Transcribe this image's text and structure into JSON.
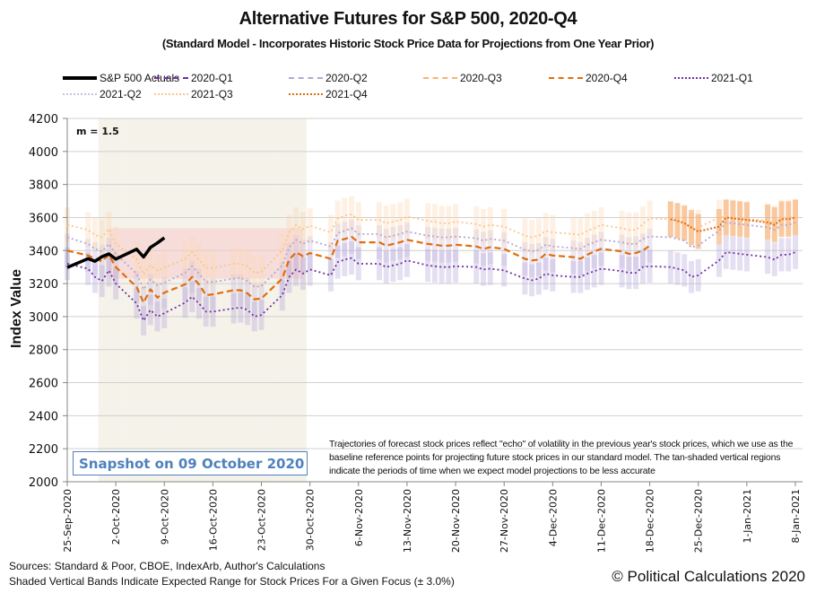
{
  "chart_data": {
    "type": "line",
    "title": "Alternative Futures for S&P 500, 2020-Q4",
    "subtitle": "(Standard Model - Incorporates Historic Stock Price Data for Projections from One Year Prior)",
    "xlabel": "",
    "ylabel": "Index Value",
    "ylim": [
      2000,
      4200
    ],
    "yticks": [
      2000,
      2200,
      2400,
      2600,
      2800,
      3000,
      3200,
      3400,
      3600,
      3800,
      4000,
      4200
    ],
    "x_start": "2020-09-25",
    "x_end": "2021-01-08",
    "xticks": [
      {
        "label": "25-Sep-2020",
        "day": 0
      },
      {
        "label": "2-Oct-2020",
        "day": 7
      },
      {
        "label": "9-Oct-2020",
        "day": 14
      },
      {
        "label": "16-Oct-2020",
        "day": 21
      },
      {
        "label": "23-Oct-2020",
        "day": 28
      },
      {
        "label": "30-Oct-2020",
        "day": 35
      },
      {
        "label": "6-Nov-2020",
        "day": 42
      },
      {
        "label": "13-Nov-2020",
        "day": 49
      },
      {
        "label": "20-Nov-2020",
        "day": 56
      },
      {
        "label": "27-Nov-2020",
        "day": 63
      },
      {
        "label": "4-Dec-2020",
        "day": 70
      },
      {
        "label": "11-Dec-2020",
        "day": 77
      },
      {
        "label": "18-Dec-2020",
        "day": 84
      },
      {
        "label": "25-Dec-2020",
        "day": 91
      },
      {
        "label": "1-Jan-2021",
        "day": 98
      },
      {
        "label": "8-Jan-2021",
        "day": 105
      }
    ],
    "grid": true,
    "legend_position": "top",
    "annotation_m": "m = 1.5",
    "band_pct": 3.0,
    "highlight_zone": {
      "day_start": 6,
      "day_end": 34,
      "y_low": 3230,
      "y_high": 3535
    },
    "tan_regions_days": [
      [
        5,
        8
      ],
      [
        9,
        15
      ],
      [
        16,
        22
      ],
      [
        23,
        29
      ],
      [
        30,
        34
      ]
    ],
    "series": [
      {
        "name": "S&P 500 Actuals",
        "color": "#000000",
        "style": "solid",
        "days": [
          0,
          3,
          4,
          5,
          6,
          7,
          10,
          11,
          12,
          13,
          14
        ],
        "values": [
          3298,
          3351,
          3335,
          3363,
          3380,
          3348,
          3408,
          3361,
          3419,
          3446,
          3477
        ]
      },
      {
        "name": "2020-Q1",
        "color": "#7030a0",
        "style": "dashed",
        "days": [],
        "values": []
      },
      {
        "name": "2020-Q2",
        "color": "#b4a7d6",
        "style": "dashed",
        "days": [],
        "values": []
      },
      {
        "name": "2020-Q3",
        "color": "#f9b26b",
        "style": "dashed",
        "days": [],
        "values": []
      },
      {
        "name": "2020-Q4",
        "color": "#e36c09",
        "style": "dashed",
        "days": [
          0,
          3,
          4,
          5,
          6,
          7,
          10,
          11,
          12,
          13,
          14,
          17,
          18,
          19,
          20,
          21,
          24,
          25,
          26,
          27,
          28,
          31,
          32,
          33,
          34,
          35,
          38,
          39,
          40,
          41,
          42,
          45,
          46,
          47,
          48,
          49,
          52,
          53,
          54,
          55,
          56,
          59,
          60,
          61,
          63,
          66,
          67,
          68,
          69,
          70,
          73,
          74,
          75,
          76,
          77,
          80,
          81,
          82,
          83,
          84
        ],
        "values": [
          3400,
          3370,
          3350,
          3335,
          3375,
          3300,
          3180,
          3085,
          3165,
          3115,
          3145,
          3195,
          3240,
          3195,
          3130,
          3135,
          3160,
          3160,
          3140,
          3105,
          3110,
          3230,
          3345,
          3390,
          3365,
          3385,
          3350,
          3460,
          3470,
          3483,
          3450,
          3450,
          3430,
          3440,
          3450,
          3465,
          3440,
          3435,
          3430,
          3430,
          3435,
          3425,
          3410,
          3420,
          3410,
          3350,
          3340,
          3345,
          3380,
          3370,
          3360,
          3350,
          3375,
          3395,
          3410,
          3395,
          3380,
          3385,
          3400,
          3430
        ]
      },
      {
        "name": "2021-Q1",
        "color": "#7030a0",
        "style": "dotted",
        "days": [
          0,
          3,
          4,
          5,
          6,
          7,
          10,
          11,
          12,
          13,
          14,
          17,
          18,
          19,
          20,
          21,
          24,
          25,
          26,
          27,
          28,
          31,
          32,
          33,
          34,
          35,
          38,
          39,
          40,
          41,
          42,
          45,
          46,
          47,
          48,
          49,
          52,
          53,
          54,
          55,
          56,
          59,
          60,
          61,
          63,
          66,
          67,
          68,
          69,
          70,
          73,
          74,
          75,
          76,
          77,
          80,
          81,
          82,
          83,
          84,
          87,
          88,
          89,
          90,
          91,
          94,
          95,
          96,
          97,
          98,
          101,
          102,
          103,
          104,
          105
        ],
        "values": [
          3320,
          3290,
          3240,
          3215,
          3280,
          3200,
          3080,
          2975,
          3040,
          3000,
          3020,
          3085,
          3120,
          3080,
          3030,
          3030,
          3050,
          3055,
          3040,
          3000,
          3010,
          3130,
          3240,
          3285,
          3260,
          3285,
          3250,
          3330,
          3345,
          3355,
          3320,
          3320,
          3300,
          3310,
          3320,
          3340,
          3310,
          3305,
          3300,
          3300,
          3305,
          3300,
          3285,
          3290,
          3280,
          3230,
          3220,
          3230,
          3260,
          3250,
          3240,
          3240,
          3260,
          3275,
          3290,
          3275,
          3265,
          3265,
          3300,
          3305,
          3300,
          3290,
          3280,
          3240,
          3250,
          3340,
          3390,
          3385,
          3380,
          3375,
          3360,
          3345,
          3375,
          3375,
          3390
        ]
      },
      {
        "name": "2021-Q2",
        "color": "#b4a7d6",
        "style": "dotted",
        "days": [
          0,
          3,
          4,
          5,
          6,
          7,
          10,
          11,
          12,
          13,
          14,
          17,
          18,
          19,
          20,
          21,
          24,
          25,
          26,
          27,
          28,
          31,
          32,
          33,
          34,
          35,
          38,
          39,
          40,
          41,
          42,
          45,
          46,
          47,
          48,
          49,
          52,
          53,
          54,
          55,
          56,
          59,
          60,
          61,
          63,
          66,
          67,
          68,
          69,
          70,
          73,
          74,
          75,
          76,
          77,
          80,
          81,
          82,
          83,
          84,
          87,
          88,
          89,
          90,
          91,
          94,
          95,
          96,
          97,
          98,
          101,
          102,
          103,
          104,
          105
        ],
        "values": [
          3480,
          3440,
          3410,
          3395,
          3440,
          3380,
          3260,
          3165,
          3225,
          3190,
          3205,
          3265,
          3305,
          3260,
          3210,
          3210,
          3230,
          3235,
          3215,
          3180,
          3185,
          3310,
          3420,
          3465,
          3440,
          3460,
          3425,
          3505,
          3520,
          3535,
          3500,
          3500,
          3480,
          3490,
          3500,
          3515,
          3490,
          3485,
          3480,
          3480,
          3485,
          3475,
          3460,
          3470,
          3460,
          3405,
          3395,
          3405,
          3435,
          3425,
          3415,
          3410,
          3435,
          3450,
          3465,
          3450,
          3440,
          3440,
          3470,
          3485,
          3480,
          3470,
          3460,
          3420,
          3430,
          3520,
          3570,
          3565,
          3560,
          3555,
          3540,
          3525,
          3555,
          3555,
          3570
        ]
      },
      {
        "name": "2021-Q3",
        "color": "#fbc58f",
        "style": "dotted",
        "days": [
          0,
          3,
          4,
          5,
          6,
          7,
          10,
          11,
          12,
          13,
          14,
          17,
          18,
          19,
          20,
          21,
          24,
          25,
          26,
          27,
          28,
          31,
          32,
          33,
          34,
          35,
          38,
          39,
          40,
          41,
          42,
          45,
          46,
          47,
          48,
          49,
          52,
          53,
          54,
          55,
          56,
          59,
          60,
          61,
          63,
          66,
          67,
          68,
          69,
          70,
          73,
          74,
          75,
          76,
          77,
          80,
          81,
          82,
          83,
          84,
          87,
          88,
          89,
          90,
          91,
          94,
          95,
          96,
          97,
          98,
          101,
          102,
          103,
          104,
          105
        ],
        "values": [
          3555,
          3525,
          3495,
          3480,
          3530,
          3440,
          3350,
          3255,
          3310,
          3280,
          3295,
          3350,
          3390,
          3345,
          3295,
          3295,
          3320,
          3320,
          3305,
          3265,
          3270,
          3400,
          3510,
          3555,
          3530,
          3550,
          3510,
          3595,
          3610,
          3620,
          3585,
          3585,
          3565,
          3575,
          3585,
          3605,
          3580,
          3575,
          3565,
          3565,
          3575,
          3560,
          3545,
          3555,
          3545,
          3490,
          3480,
          3490,
          3520,
          3510,
          3500,
          3495,
          3520,
          3535,
          3555,
          3535,
          3525,
          3525,
          3560,
          3595,
          3590,
          3580,
          3570,
          3525,
          3540,
          3600,
          3605,
          3600,
          3595,
          3590,
          3580,
          3565,
          3600,
          3600,
          3605
        ]
      },
      {
        "name": "2021-Q4",
        "color": "#e36c09",
        "style": "dotted",
        "days": [
          87,
          88,
          89,
          90,
          91,
          94,
          95,
          96,
          97,
          98,
          101,
          102,
          103,
          104,
          105
        ],
        "values": [
          3590,
          3580,
          3565,
          3540,
          3515,
          3545,
          3600,
          3595,
          3590,
          3585,
          3570,
          3555,
          3590,
          3590,
          3600
        ]
      }
    ]
  },
  "legend": {
    "items": [
      {
        "label": "S&P 500 Actuals"
      },
      {
        "label": "2020-Q1"
      },
      {
        "label": "2020-Q2"
      },
      {
        "label": "2020-Q3"
      },
      {
        "label": "2020-Q4"
      },
      {
        "label": "2021-Q1"
      },
      {
        "label": "2021-Q2"
      },
      {
        "label": "2021-Q3"
      },
      {
        "label": "2021-Q4"
      }
    ]
  },
  "snapshot_label": "Snapshot on 09 October 2020",
  "note": "Trajectories of forecast stock prices reflect \"echo\" of volatility in  the previous year's stock prices, which we use as the baseline reference points for projecting future stock prices in our standard model.   The tan-shaded vertical regions indicate the periods of time when we expect model projections to be less accurate",
  "footer": {
    "sources": "Sources: Standard & Poor, CBOE, IndexArb, Author's Calculations",
    "bands_note": "Shaded Vertical Bands Indicate Expected Range for Stock Prices For a Given Focus (± 3.0%)",
    "copyright": "© Political Calculations 2020"
  }
}
